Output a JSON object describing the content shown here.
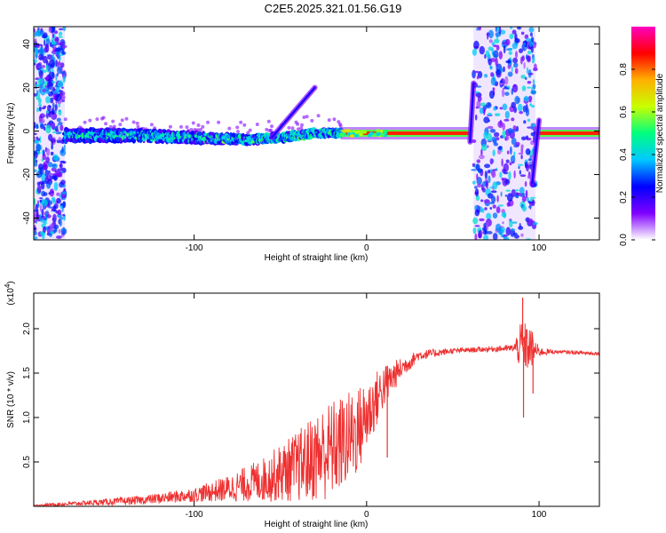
{
  "title": "C2E5.2025.321.01.56.G19",
  "chart_data": [
    {
      "type": "heatmap",
      "xlabel": "Height of straight line (km)",
      "ylabel": "Frequency (Hz)",
      "xlim": [
        -193,
        135
      ],
      "ylim": [
        -50,
        48
      ],
      "xticks": [
        -100,
        0,
        100
      ],
      "yticks": [
        -40,
        -20,
        0,
        20,
        40
      ],
      "colorbar": {
        "label": "Normalized spectral amplitude",
        "range": [
          0,
          1
        ],
        "ticks": [
          0.0,
          0.2,
          0.4,
          0.6,
          0.8
        ],
        "colormap": [
          "#ffffff",
          "#8000ff",
          "#0000ff",
          "#00c8ff",
          "#00ff80",
          "#c8ff00",
          "#ffb000",
          "#ff0000",
          "#ff00c0"
        ]
      },
      "noise_regions": [
        [
          -193,
          -175
        ],
        [
          62,
          98
        ]
      ],
      "ridge": {
        "segments": [
          {
            "x": [
              -175,
              -130,
              -100,
              -70,
              -50,
              -30,
              -15
            ],
            "y": [
              -2,
              -2,
              -3,
              -4,
              -3,
              -1,
              -1
            ]
          },
          {
            "x": [
              -15,
              0,
              60
            ],
            "y": [
              -1,
              -1,
              -1
            ]
          },
          {
            "x": [
              98,
              135
            ],
            "y": [
              -1,
              -1
            ]
          }
        ],
        "spurs": [
          {
            "x": [
              -55,
              -30
            ],
            "y": [
              -3,
              20
            ]
          },
          {
            "x": [
              60,
              62
            ],
            "y": [
              -5,
              22
            ]
          },
          {
            "x": [
              96,
              100
            ],
            "y": [
              -24,
              5
            ]
          }
        ]
      }
    },
    {
      "type": "line",
      "xlabel": "Height of straight line (km)",
      "ylabel": "SNR (10 * v/v)",
      "y_multiplier": "(x10^4)",
      "xlim": [
        -193,
        135
      ],
      "ylim": [
        0.0,
        2.4
      ],
      "xticks": [
        -100,
        0,
        100
      ],
      "yticks": [
        0.5,
        1.0,
        1.5,
        2.0
      ],
      "color": "#ee3030",
      "envelope": {
        "x": [
          -193,
          -160,
          -130,
          -100,
          -80,
          -60,
          -40,
          -25,
          -15,
          -5,
          10,
          20,
          30,
          50,
          70,
          85,
          90,
          95,
          100,
          110,
          135
        ],
        "mean": [
          0.01,
          0.04,
          0.07,
          0.13,
          0.2,
          0.3,
          0.45,
          0.6,
          0.7,
          0.85,
          1.35,
          1.55,
          1.7,
          1.75,
          1.77,
          1.78,
          1.8,
          1.78,
          1.74,
          1.74,
          1.72
        ],
        "spread": [
          0.01,
          0.03,
          0.05,
          0.08,
          0.15,
          0.25,
          0.4,
          0.55,
          0.55,
          0.5,
          0.25,
          0.12,
          0.06,
          0.03,
          0.03,
          0.04,
          0.3,
          0.25,
          0.05,
          0.02,
          0.02
        ]
      },
      "peaks": [
        {
          "x": 90.5,
          "y": 2.35
        },
        {
          "x": 91.0,
          "y": 1.0
        },
        {
          "x": 96.5,
          "y": 1.27
        },
        {
          "x": 12.0,
          "y": 0.55
        }
      ]
    }
  ]
}
